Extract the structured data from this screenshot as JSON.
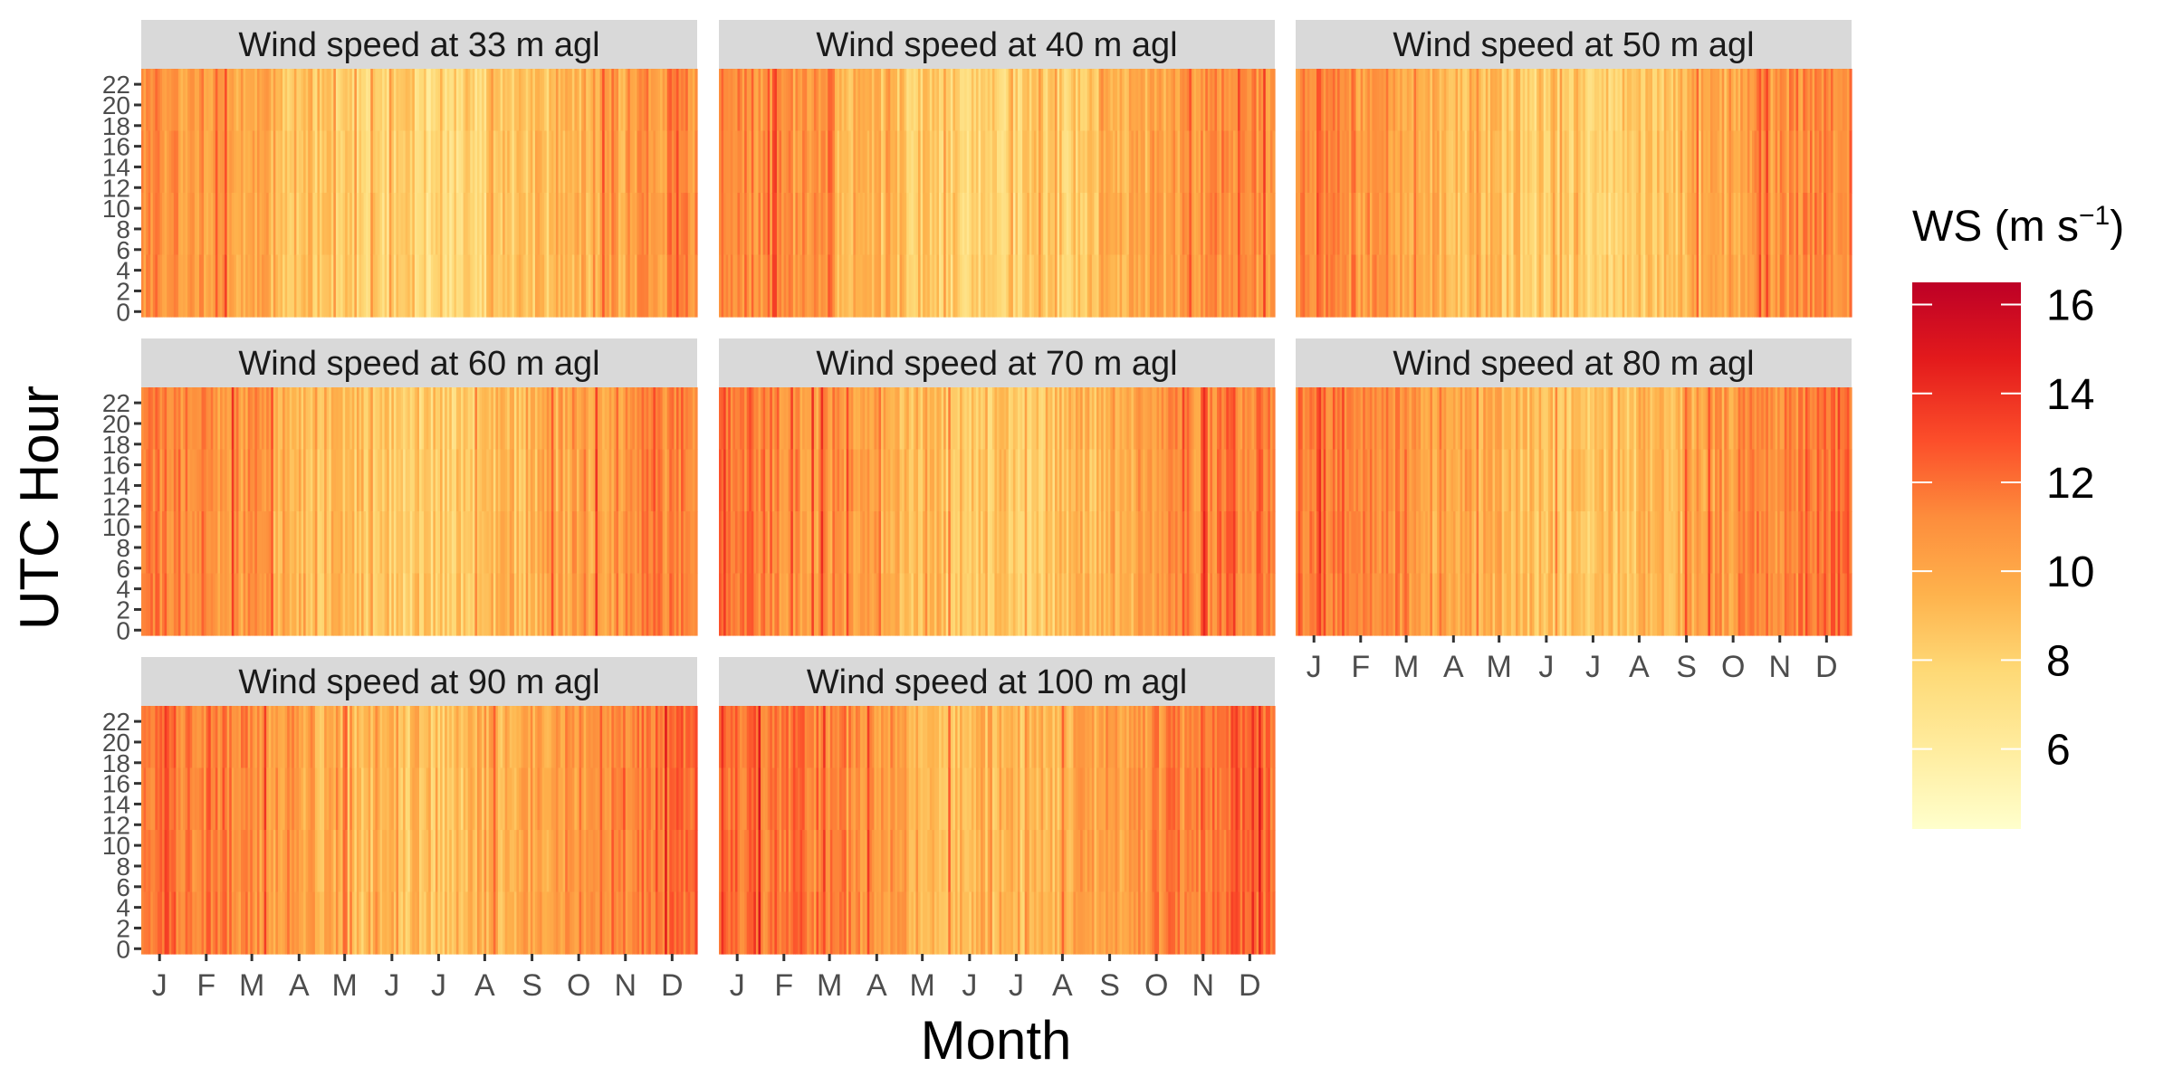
{
  "chart_data": {
    "type": "heatmap",
    "xlabel": "Month",
    "ylabel": "UTC Hour",
    "x_ticks": [
      "J",
      "F",
      "M",
      "A",
      "M",
      "J",
      "J",
      "A",
      "S",
      "O",
      "N",
      "D"
    ],
    "y_ticks": [
      "0",
      "2",
      "4",
      "6",
      "8",
      "10",
      "12",
      "14",
      "16",
      "18",
      "20",
      "22"
    ],
    "y_range": [
      0,
      23
    ],
    "legend": {
      "title": "WS (m s",
      "title_superscript": "−1",
      "title_close": ")",
      "ticks": [
        "6",
        "8",
        "10",
        "12",
        "14",
        "16"
      ],
      "tick_values": [
        6,
        8,
        10,
        12,
        14,
        16
      ],
      "range": [
        4.2,
        16.5
      ],
      "placement": "right"
    },
    "colorscale": [
      "#ffffcc",
      "#ffeda0",
      "#fed976",
      "#feb24c",
      "#fd8d3c",
      "#fc4e2a",
      "#e31a1c",
      "#bd0026"
    ],
    "panels": [
      {
        "title": "Wind speed at 33 m agl",
        "mean_ws": 9.2,
        "show_x_ticks": false,
        "show_y_ticks": true
      },
      {
        "title": "Wind speed at 40 m agl",
        "mean_ws": 9.5,
        "show_x_ticks": false,
        "show_y_ticks": false
      },
      {
        "title": "Wind speed at 50 m agl",
        "mean_ws": 9.7,
        "show_x_ticks": false,
        "show_y_ticks": false
      },
      {
        "title": "Wind speed at 60 m agl",
        "mean_ws": 9.9,
        "show_x_ticks": false,
        "show_y_ticks": true
      },
      {
        "title": "Wind speed at 70 m agl",
        "mean_ws": 10.1,
        "show_x_ticks": false,
        "show_y_ticks": false
      },
      {
        "title": "Wind speed at 80 m agl",
        "mean_ws": 10.3,
        "show_x_ticks": true,
        "show_y_ticks": false
      },
      {
        "title": "Wind speed at 90 m agl",
        "mean_ws": 10.5,
        "show_x_ticks": true,
        "show_y_ticks": true
      },
      {
        "title": "Wind speed at 100 m agl",
        "mean_ws": 10.7,
        "show_x_ticks": true,
        "show_y_ticks": false
      }
    ]
  }
}
